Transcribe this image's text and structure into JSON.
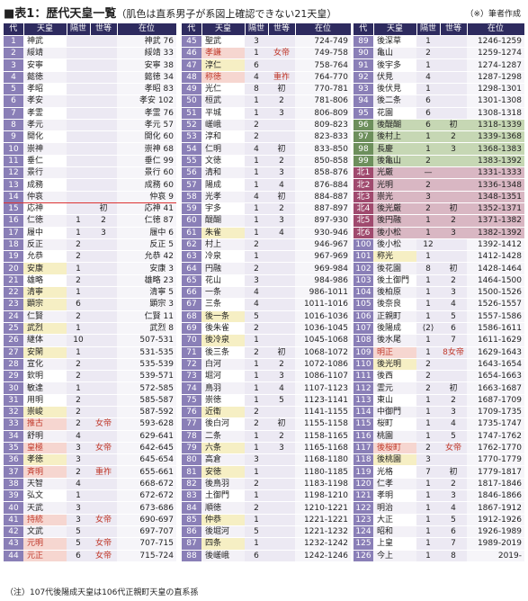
{
  "title": "■表1：歴代天皇一覧",
  "subtitle": "（肌色は直系男子が系図上確認できない21天皇）",
  "author_note": "（※）筆者作成",
  "footnote": "（注）107代後陽成天皇は106代正親町天皇の直系孫",
  "headers": {
    "no": "代",
    "name": "天皇",
    "gen": "隔世",
    "seq": "世等",
    "reign": "在位"
  },
  "col1": [
    {
      "no": "1",
      "name": "神武",
      "gen": "",
      "seq": "",
      "reign": "神武 76"
    },
    {
      "no": "2",
      "name": "綏靖",
      "gen": "",
      "seq": "",
      "reign": "綏靖 33"
    },
    {
      "no": "3",
      "name": "安寧",
      "gen": "",
      "seq": "",
      "reign": "安寧 38"
    },
    {
      "no": "4",
      "name": "懿徳",
      "gen": "",
      "seq": "",
      "reign": "懿徳 34"
    },
    {
      "no": "5",
      "name": "孝昭",
      "gen": "",
      "seq": "",
      "reign": "孝昭 83"
    },
    {
      "no": "6",
      "name": "孝安",
      "gen": "",
      "seq": "",
      "reign": "孝安 102"
    },
    {
      "no": "7",
      "name": "孝霊",
      "gen": "",
      "seq": "",
      "reign": "孝霊 76"
    },
    {
      "no": "8",
      "name": "孝元",
      "gen": "",
      "seq": "",
      "reign": "孝元 57"
    },
    {
      "no": "9",
      "name": "開化",
      "gen": "",
      "seq": "",
      "reign": "開化 60"
    },
    {
      "no": "10",
      "name": "崇神",
      "gen": "",
      "seq": "",
      "reign": "崇神 68"
    },
    {
      "no": "11",
      "name": "垂仁",
      "gen": "",
      "seq": "",
      "reign": "垂仁 99"
    },
    {
      "no": "12",
      "name": "景行",
      "gen": "",
      "seq": "",
      "reign": "景行 60"
    },
    {
      "no": "13",
      "name": "成務",
      "gen": "",
      "seq": "",
      "reign": "成務 60"
    },
    {
      "no": "14",
      "name": "仲哀",
      "gen": "",
      "seq": "",
      "reign": "仲哀 9",
      "cls": "redline"
    },
    {
      "no": "15",
      "name": "応神",
      "gen": "",
      "seq": "初",
      "reign": "応神 41"
    },
    {
      "no": "16",
      "name": "仁徳",
      "gen": "1",
      "seq": "2",
      "reign": "仁徳 87"
    },
    {
      "no": "17",
      "name": "履中",
      "gen": "1",
      "seq": "3",
      "reign": "履中 6"
    },
    {
      "no": "18",
      "name": "反正",
      "gen": "2",
      "seq": "",
      "reign": "反正 5"
    },
    {
      "no": "19",
      "name": "允恭",
      "gen": "2",
      "seq": "",
      "reign": "允恭 42"
    },
    {
      "no": "20",
      "name": "安康",
      "gen": "1",
      "seq": "",
      "reign": "安康 3",
      "cls": "yellow"
    },
    {
      "no": "21",
      "name": "雄略",
      "gen": "2",
      "seq": "",
      "reign": "雄略 23"
    },
    {
      "no": "22",
      "name": "清寧",
      "gen": "1",
      "seq": "",
      "reign": "清寧 5",
      "cls": "yellow"
    },
    {
      "no": "23",
      "name": "顕宗",
      "gen": "6",
      "seq": "",
      "reign": "顕宗 3",
      "cls": "yellow"
    },
    {
      "no": "24",
      "name": "仁賢",
      "gen": "2",
      "seq": "",
      "reign": "仁賢 11"
    },
    {
      "no": "25",
      "name": "武烈",
      "gen": "1",
      "seq": "",
      "reign": "武烈 8",
      "cls": "yellow"
    },
    {
      "no": "26",
      "name": "継体",
      "gen": "10",
      "seq": "",
      "reign": "507-531"
    },
    {
      "no": "27",
      "name": "安閑",
      "gen": "1",
      "seq": "",
      "reign": "531-535",
      "cls": "yellow"
    },
    {
      "no": "28",
      "name": "宣化",
      "gen": "2",
      "seq": "",
      "reign": "535-539"
    },
    {
      "no": "29",
      "name": "欽明",
      "gen": "2",
      "seq": "",
      "reign": "539-571"
    },
    {
      "no": "30",
      "name": "敏達",
      "gen": "1",
      "seq": "",
      "reign": "572-585"
    },
    {
      "no": "31",
      "name": "用明",
      "gen": "2",
      "seq": "",
      "reign": "585-587"
    },
    {
      "no": "32",
      "name": "崇峻",
      "gen": "2",
      "seq": "",
      "reign": "587-592",
      "cls": "yellow"
    },
    {
      "no": "33",
      "name": "推古",
      "gen": "2",
      "seq": "女帝",
      "reign": "593-628",
      "cls": "female"
    },
    {
      "no": "34",
      "name": "舒明",
      "gen": "4",
      "seq": "",
      "reign": "629-641"
    },
    {
      "no": "35",
      "name": "皇極",
      "gen": "3",
      "seq": "女帝",
      "reign": "642-645",
      "cls": "female"
    },
    {
      "no": "36",
      "name": "孝徳",
      "gen": "3",
      "seq": "",
      "reign": "645-654",
      "cls": "yellow"
    },
    {
      "no": "37",
      "name": "斉明",
      "gen": "2",
      "seq": "重祚",
      "reign": "655-661",
      "cls": "female"
    },
    {
      "no": "38",
      "name": "天智",
      "gen": "4",
      "seq": "",
      "reign": "668-672"
    },
    {
      "no": "39",
      "name": "弘文",
      "gen": "1",
      "seq": "",
      "reign": "672-672"
    },
    {
      "no": "40",
      "name": "天武",
      "gen": "3",
      "seq": "",
      "reign": "673-686"
    },
    {
      "no": "41",
      "name": "持統",
      "gen": "3",
      "seq": "女帝",
      "reign": "690-697",
      "cls": "female"
    },
    {
      "no": "42",
      "name": "文武",
      "gen": "5",
      "seq": "",
      "reign": "697-707"
    },
    {
      "no": "43",
      "name": "元明",
      "gen": "5",
      "seq": "女帝",
      "reign": "707-715",
      "cls": "female"
    },
    {
      "no": "44",
      "name": "元正",
      "gen": "6",
      "seq": "女帝",
      "reign": "715-724",
      "cls": "female"
    }
  ],
  "col2": [
    {
      "no": "45",
      "name": "聖武",
      "gen": "3",
      "seq": "",
      "reign": "724-749"
    },
    {
      "no": "46",
      "name": "孝謙",
      "gen": "1",
      "seq": "女帝",
      "reign": "749-758",
      "cls": "female"
    },
    {
      "no": "47",
      "name": "淳仁",
      "gen": "6",
      "seq": "",
      "reign": "758-764",
      "cls": "yellow"
    },
    {
      "no": "48",
      "name": "称徳",
      "gen": "4",
      "seq": "重祚",
      "reign": "764-770",
      "cls": "female"
    },
    {
      "no": "49",
      "name": "光仁",
      "gen": "8",
      "seq": "初",
      "reign": "770-781"
    },
    {
      "no": "50",
      "name": "桓武",
      "gen": "1",
      "seq": "2",
      "reign": "781-806"
    },
    {
      "no": "51",
      "name": "平城",
      "gen": "1",
      "seq": "3",
      "reign": "806-809"
    },
    {
      "no": "52",
      "name": "嵯峨",
      "gen": "2",
      "seq": "",
      "reign": "809-823"
    },
    {
      "no": "53",
      "name": "淳和",
      "gen": "2",
      "seq": "",
      "reign": "823-833"
    },
    {
      "no": "54",
      "name": "仁明",
      "gen": "4",
      "seq": "初",
      "reign": "833-850"
    },
    {
      "no": "55",
      "name": "文徳",
      "gen": "1",
      "seq": "2",
      "reign": "850-858"
    },
    {
      "no": "56",
      "name": "清和",
      "gen": "1",
      "seq": "3",
      "reign": "858-876"
    },
    {
      "no": "57",
      "name": "陽成",
      "gen": "1",
      "seq": "4",
      "reign": "876-884"
    },
    {
      "no": "58",
      "name": "光孝",
      "gen": "4",
      "seq": "初",
      "reign": "884-887"
    },
    {
      "no": "59",
      "name": "宇多",
      "gen": "1",
      "seq": "2",
      "reign": "887-897"
    },
    {
      "no": "60",
      "name": "醍醐",
      "gen": "1",
      "seq": "3",
      "reign": "897-930"
    },
    {
      "no": "61",
      "name": "朱雀",
      "gen": "1",
      "seq": "4",
      "reign": "930-946",
      "cls": "yellow"
    },
    {
      "no": "62",
      "name": "村上",
      "gen": "2",
      "seq": "",
      "reign": "946-967"
    },
    {
      "no": "63",
      "name": "冷泉",
      "gen": "1",
      "seq": "",
      "reign": "967-969"
    },
    {
      "no": "64",
      "name": "円融",
      "gen": "2",
      "seq": "",
      "reign": "969-984"
    },
    {
      "no": "65",
      "name": "花山",
      "gen": "3",
      "seq": "",
      "reign": "984-986"
    },
    {
      "no": "66",
      "name": "一条",
      "gen": "4",
      "seq": "",
      "reign": "986-1011"
    },
    {
      "no": "67",
      "name": "三条",
      "gen": "4",
      "seq": "",
      "reign": "1011-1016"
    },
    {
      "no": "68",
      "name": "後一条",
      "gen": "5",
      "seq": "",
      "reign": "1016-1036",
      "cls": "yellow"
    },
    {
      "no": "69",
      "name": "後朱雀",
      "gen": "2",
      "seq": "",
      "reign": "1036-1045"
    },
    {
      "no": "70",
      "name": "後冷泉",
      "gen": "1",
      "seq": "",
      "reign": "1045-1068",
      "cls": "yellow"
    },
    {
      "no": "71",
      "name": "後三条",
      "gen": "2",
      "seq": "初",
      "reign": "1068-1072"
    },
    {
      "no": "72",
      "name": "白河",
      "gen": "1",
      "seq": "2",
      "reign": "1072-1086"
    },
    {
      "no": "73",
      "name": "堀河",
      "gen": "1",
      "seq": "3",
      "reign": "1086-1107"
    },
    {
      "no": "74",
      "name": "鳥羽",
      "gen": "1",
      "seq": "4",
      "reign": "1107-1123"
    },
    {
      "no": "75",
      "name": "崇徳",
      "gen": "1",
      "seq": "5",
      "reign": "1123-1141"
    },
    {
      "no": "76",
      "name": "近衛",
      "gen": "2",
      "seq": "",
      "reign": "1141-1155",
      "cls": "yellow"
    },
    {
      "no": "77",
      "name": "後白河",
      "gen": "2",
      "seq": "初",
      "reign": "1155-1158"
    },
    {
      "no": "78",
      "name": "二条",
      "gen": "1",
      "seq": "2",
      "reign": "1158-1165"
    },
    {
      "no": "79",
      "name": "六条",
      "gen": "1",
      "seq": "3",
      "reign": "1165-1168",
      "cls": "yellow"
    },
    {
      "no": "80",
      "name": "高倉",
      "gen": "3",
      "seq": "",
      "reign": "1168-1180"
    },
    {
      "no": "81",
      "name": "安徳",
      "gen": "1",
      "seq": "",
      "reign": "1180-1185",
      "cls": "yellow"
    },
    {
      "no": "82",
      "name": "後鳥羽",
      "gen": "2",
      "seq": "",
      "reign": "1183-1198"
    },
    {
      "no": "83",
      "name": "土御門",
      "gen": "1",
      "seq": "",
      "reign": "1198-1210"
    },
    {
      "no": "84",
      "name": "順徳",
      "gen": "2",
      "seq": "",
      "reign": "1210-1221"
    },
    {
      "no": "85",
      "name": "仲恭",
      "gen": "1",
      "seq": "",
      "reign": "1221-1221",
      "cls": "yellow"
    },
    {
      "no": "86",
      "name": "後堀河",
      "gen": "5",
      "seq": "",
      "reign": "1221-1232"
    },
    {
      "no": "87",
      "name": "四条",
      "gen": "1",
      "seq": "",
      "reign": "1232-1242",
      "cls": "yellow"
    },
    {
      "no": "88",
      "name": "後嵯峨",
      "gen": "6",
      "seq": "",
      "reign": "1242-1246"
    }
  ],
  "col3": [
    {
      "no": "89",
      "name": "後深草",
      "gen": "1",
      "seq": "",
      "reign": "1246-1259"
    },
    {
      "no": "90",
      "name": "亀山",
      "gen": "2",
      "seq": "",
      "reign": "1259-1274"
    },
    {
      "no": "91",
      "name": "後宇多",
      "gen": "1",
      "seq": "",
      "reign": "1274-1287"
    },
    {
      "no": "92",
      "name": "伏見",
      "gen": "4",
      "seq": "",
      "reign": "1287-1298"
    },
    {
      "no": "93",
      "name": "後伏見",
      "gen": "1",
      "seq": "",
      "reign": "1298-1301"
    },
    {
      "no": "94",
      "name": "後二条",
      "gen": "6",
      "seq": "",
      "reign": "1301-1308"
    },
    {
      "no": "95",
      "name": "花園",
      "gen": "6",
      "seq": "",
      "reign": "1308-1318"
    },
    {
      "no": "96",
      "name": "後醍醐",
      "gen": "6",
      "seq": "初",
      "reign": "1318-1339",
      "cls": "green"
    },
    {
      "no": "97",
      "name": "後村上",
      "gen": "1",
      "seq": "2",
      "reign": "1339-1368",
      "cls": "green"
    },
    {
      "no": "98",
      "name": "長慶",
      "gen": "1",
      "seq": "3",
      "reign": "1368-1383",
      "cls": "green"
    },
    {
      "no": "99",
      "name": "後亀山",
      "gen": "2",
      "seq": "",
      "reign": "1383-1392",
      "cls": "green"
    },
    {
      "no": "北1",
      "name": "光厳",
      "gen": "—",
      "seq": "",
      "reign": "1331-1333",
      "cls": "north"
    },
    {
      "no": "北2",
      "name": "光明",
      "gen": "2",
      "seq": "",
      "reign": "1336-1348",
      "cls": "north"
    },
    {
      "no": "北3",
      "name": "崇光",
      "gen": "3",
      "seq": "",
      "reign": "1348-1351",
      "cls": "north"
    },
    {
      "no": "北4",
      "name": "後光厳",
      "gen": "2",
      "seq": "初",
      "reign": "1352-1371",
      "cls": "north"
    },
    {
      "no": "北5",
      "name": "後円融",
      "gen": "1",
      "seq": "2",
      "reign": "1371-1382",
      "cls": "north"
    },
    {
      "no": "北6",
      "name": "後小松",
      "gen": "1",
      "seq": "3",
      "reign": "1382-1392",
      "cls": "north"
    },
    {
      "no": "100",
      "name": "後小松",
      "gen": "12",
      "seq": "",
      "reign": "1392-1412"
    },
    {
      "no": "101",
      "name": "称光",
      "gen": "1",
      "seq": "",
      "reign": "1412-1428",
      "cls": "yellow"
    },
    {
      "no": "102",
      "name": "後花園",
      "gen": "8",
      "seq": "初",
      "reign": "1428-1464"
    },
    {
      "no": "103",
      "name": "後土御門",
      "gen": "1",
      "seq": "2",
      "reign": "1464-1500"
    },
    {
      "no": "104",
      "name": "後柏原",
      "gen": "1",
      "seq": "3",
      "reign": "1500-1526"
    },
    {
      "no": "105",
      "name": "後奈良",
      "gen": "1",
      "seq": "4",
      "reign": "1526-1557"
    },
    {
      "no": "106",
      "name": "正親町",
      "gen": "1",
      "seq": "5",
      "reign": "1557-1586"
    },
    {
      "no": "107",
      "name": "後陽成",
      "gen": "⟨2⟩",
      "seq": "6",
      "reign": "1586-1611"
    },
    {
      "no": "108",
      "name": "後水尾",
      "gen": "1",
      "seq": "7",
      "reign": "1611-1629"
    },
    {
      "no": "109",
      "name": "明正",
      "gen": "1",
      "seq": "8女帝",
      "reign": "1629-1643",
      "cls": "female"
    },
    {
      "no": "110",
      "name": "後光明",
      "gen": "2",
      "seq": "",
      "reign": "1643-1654",
      "cls": "yellow"
    },
    {
      "no": "111",
      "name": "後西",
      "gen": "2",
      "seq": "",
      "reign": "1654-1663"
    },
    {
      "no": "112",
      "name": "霊元",
      "gen": "2",
      "seq": "初",
      "reign": "1663-1687"
    },
    {
      "no": "113",
      "name": "東山",
      "gen": "1",
      "seq": "2",
      "reign": "1687-1709"
    },
    {
      "no": "114",
      "name": "中御門",
      "gen": "1",
      "seq": "3",
      "reign": "1709-1735"
    },
    {
      "no": "115",
      "name": "桜町",
      "gen": "1",
      "seq": "4",
      "reign": "1735-1747"
    },
    {
      "no": "116",
      "name": "桃園",
      "gen": "1",
      "seq": "5",
      "reign": "1747-1762"
    },
    {
      "no": "117",
      "name": "後桜町",
      "gen": "2",
      "seq": "女帝",
      "reign": "1762-1770",
      "cls": "female"
    },
    {
      "no": "118",
      "name": "後桃園",
      "gen": "3",
      "seq": "",
      "reign": "1770-1779",
      "cls": "yellow"
    },
    {
      "no": "119",
      "name": "光格",
      "gen": "7",
      "seq": "初",
      "reign": "1779-1817"
    },
    {
      "no": "120",
      "name": "仁孝",
      "gen": "1",
      "seq": "2",
      "reign": "1817-1846"
    },
    {
      "no": "121",
      "name": "孝明",
      "gen": "1",
      "seq": "3",
      "reign": "1846-1866"
    },
    {
      "no": "122",
      "name": "明治",
      "gen": "1",
      "seq": "4",
      "reign": "1867-1912"
    },
    {
      "no": "123",
      "name": "大正",
      "gen": "1",
      "seq": "5",
      "reign": "1912-1926"
    },
    {
      "no": "124",
      "name": "昭和",
      "gen": "1",
      "seq": "6",
      "reign": "1926-1989"
    },
    {
      "no": "125",
      "name": "上皇",
      "gen": "1",
      "seq": "7",
      "reign": "1989-2019"
    },
    {
      "no": "126",
      "name": "今上",
      "gen": "1",
      "seq": "8",
      "reign": "2019-"
    }
  ]
}
